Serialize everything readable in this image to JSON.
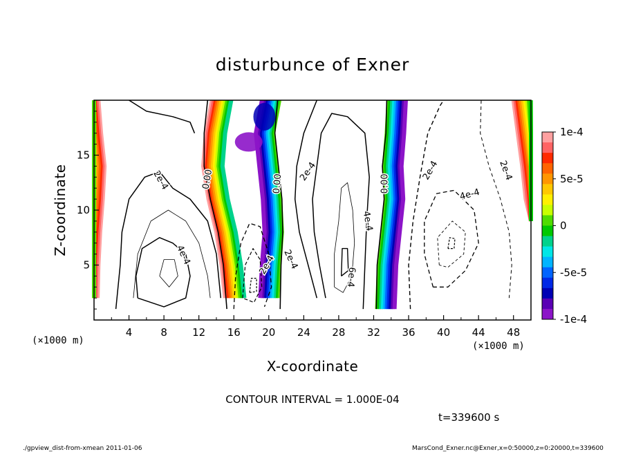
{
  "chart_data": {
    "type": "heatmap",
    "title": "disturbunce of Exner",
    "xlabel": "X-coordinate",
    "ylabel": "Z-coordinate",
    "x_unit_left": "(×1000 m)",
    "x_unit_right": "(×1000 m)",
    "xlim": [
      0,
      50
    ],
    "ylim": [
      0,
      20
    ],
    "xticks": [
      "4",
      "8",
      "12",
      "16",
      "20",
      "24",
      "28",
      "32",
      "36",
      "40",
      "44",
      "48"
    ],
    "xtick_values": [
      4,
      8,
      12,
      16,
      20,
      24,
      28,
      32,
      36,
      40,
      44,
      48
    ],
    "yticks": [
      "5",
      "10",
      "15"
    ],
    "ytick_values": [
      5,
      10,
      15
    ],
    "colorbar": {
      "range": [
        -0.0001,
        0.0001
      ],
      "tick_labels": [
        "1e-4",
        "5e-5",
        "0",
        "-5e-5",
        "-1e-4"
      ],
      "tick_values": [
        0.0001,
        5e-05,
        0,
        -5e-05,
        -0.0001
      ],
      "colors_top_to_bottom": [
        "#ffa0a0",
        "#ff6464",
        "#ff2a00",
        "#ff6400",
        "#ff9600",
        "#ffc800",
        "#fff000",
        "#c8ff00",
        "#50dc00",
        "#00c800",
        "#00d28c",
        "#00e6e6",
        "#00b4ff",
        "#0064ff",
        "#0028e6",
        "#0000b4",
        "#5a00b4",
        "#8c14c8"
      ]
    },
    "contour_labels": [
      "0.00",
      "0.00",
      "0.00",
      "2e-4",
      "2e-4",
      "2e-4",
      "2e-4",
      "2e-4",
      "2e-4",
      "4e-4",
      "4e-4",
      "4e-4",
      "6e-4"
    ],
    "contour_interval_text": "CONTOUR INTERVAL = 1.000E-04",
    "time_text": "t=339600 s"
  },
  "footer": {
    "left": "./gpview_dist-from-xmean   2011-01-06",
    "right": "MarsCond_Exner.nc@Exner,x=0:50000,z=0:20000,t=339600"
  }
}
